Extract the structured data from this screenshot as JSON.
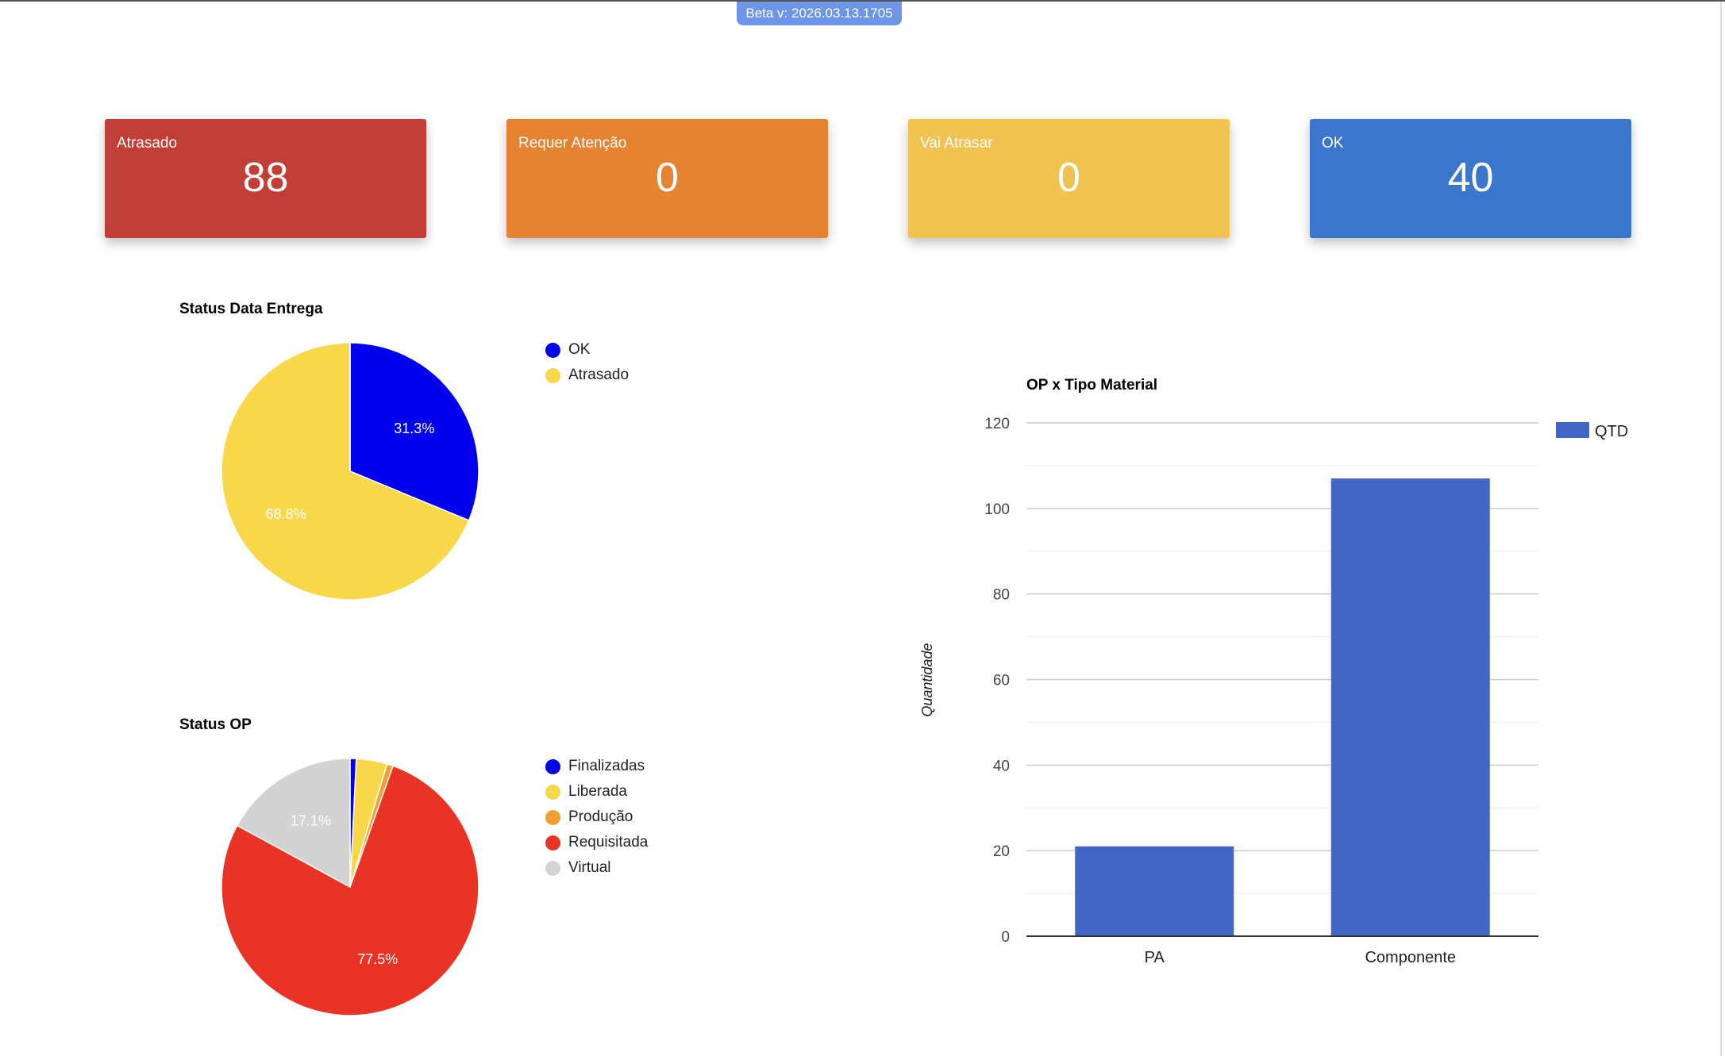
{
  "version_badge": "Beta  v: 2026.03.13.1705",
  "cards": [
    {
      "label": "Atrasado",
      "value": "88",
      "color": "#c23f38"
    },
    {
      "label": "Requer Atenção",
      "value": "0",
      "color": "#e58331"
    },
    {
      "label": "Vai Atrasar",
      "value": "0",
      "color": "#f0c350"
    },
    {
      "label": "OK",
      "value": "40",
      "color": "#3a76cc"
    }
  ],
  "chart_data": [
    {
      "type": "pie",
      "title": "Status Data Entrega",
      "legend": "right",
      "slices": [
        {
          "name": "OK",
          "value": 40,
          "label": "31.3%",
          "color": "#0000ee"
        },
        {
          "name": "Atrasado",
          "value": 88,
          "label": "68.8%",
          "color": "#f8d84a"
        }
      ]
    },
    {
      "type": "pie",
      "title": "Status OP",
      "legend": "right",
      "slices": [
        {
          "name": "Finalizadas",
          "value": 1,
          "label": "",
          "color": "#0000ee"
        },
        {
          "name": "Liberada",
          "value": 5,
          "label": "",
          "color": "#f8d84a"
        },
        {
          "name": "Produção",
          "value": 1,
          "label": "",
          "color": "#f0a030"
        },
        {
          "name": "Requisitada",
          "value": 100,
          "label": "77.5%",
          "color": "#e93324"
        },
        {
          "name": "Virtual",
          "value": 22,
          "label": "17.1%",
          "color": "#d3d3d3"
        }
      ]
    },
    {
      "type": "bar",
      "title": "OP x Tipo Material",
      "xlabel": "",
      "ylabel": "Quantidade",
      "ylim": [
        0,
        120
      ],
      "yticks": [
        0,
        20,
        40,
        60,
        80,
        100,
        120
      ],
      "grid": true,
      "legend": "right",
      "categories": [
        "PA",
        "Componente"
      ],
      "series": [
        {
          "name": "QTD",
          "values": [
            21,
            107
          ],
          "color": "#4166c5"
        }
      ]
    }
  ]
}
